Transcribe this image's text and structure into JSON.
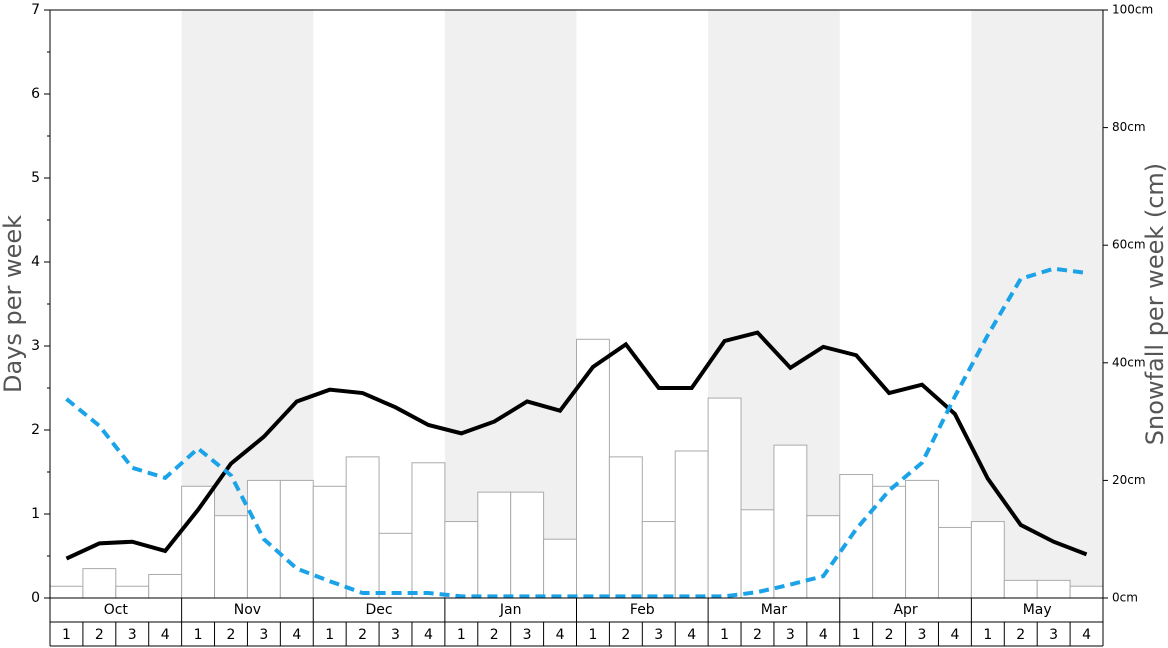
{
  "chart_data": {
    "type": "bar",
    "y_label": "Days per week",
    "y2_label": "Snowfall per week (cm)",
    "months": [
      "Oct",
      "Nov",
      "Dec",
      "Jan",
      "Feb",
      "Mar",
      "Apr",
      "May"
    ],
    "categories": [
      "1",
      "2",
      "3",
      "4",
      "1",
      "2",
      "3",
      "4",
      "1",
      "2",
      "3",
      "4",
      "1",
      "2",
      "3",
      "4",
      "1",
      "2",
      "3",
      "4",
      "1",
      "2",
      "3",
      "4",
      "1",
      "2",
      "3",
      "4",
      "1",
      "2",
      "3",
      "4"
    ],
    "ylim": [
      0,
      7
    ],
    "yticks": [
      0,
      1,
      2,
      3,
      4,
      5,
      6,
      7
    ],
    "y2lim": [
      0,
      100
    ],
    "y2ticks": [
      {
        "value": 0,
        "label": "0cm"
      },
      {
        "value": 20,
        "label": "20cm"
      },
      {
        "value": 40,
        "label": "40cm"
      },
      {
        "value": 60,
        "label": "60cm"
      },
      {
        "value": 80,
        "label": "80cm"
      },
      {
        "value": 100,
        "label": "100cm"
      }
    ],
    "series": [
      {
        "type": "bar",
        "axis": "y2",
        "color": "#ffffff",
        "values": [
          2,
          5,
          2,
          4,
          19,
          14,
          20,
          20,
          19,
          24,
          11,
          23,
          13,
          18,
          18,
          10,
          44,
          24,
          13,
          25,
          34,
          15,
          26,
          14,
          21,
          19,
          20,
          12,
          13,
          3,
          3,
          2
        ]
      },
      {
        "type": "line",
        "color": "#000000",
        "dashed": false,
        "values": [
          0.47,
          0.65,
          0.67,
          0.56,
          1.05,
          1.6,
          1.92,
          2.34,
          2.48,
          2.44,
          2.27,
          2.06,
          1.96,
          2.1,
          2.34,
          2.23,
          2.75,
          3.02,
          2.5,
          2.5,
          3.06,
          3.16,
          2.74,
          2.99,
          2.89,
          2.44,
          2.54,
          2.19,
          1.42,
          0.87,
          0.67,
          0.52
        ]
      },
      {
        "type": "line",
        "color": "#1aa3e8",
        "dashed": true,
        "values": [
          2.37,
          2.05,
          1.55,
          1.43,
          1.78,
          1.46,
          0.7,
          0.35,
          0.2,
          0.06,
          0.06,
          0.06,
          0.02,
          0.02,
          0.02,
          0.02,
          0.02,
          0.02,
          0.02,
          0.02,
          0.02,
          0.07,
          0.16,
          0.26,
          0.82,
          1.28,
          1.61,
          2.4,
          3.13,
          3.8,
          3.92,
          3.87
        ]
      }
    ]
  }
}
